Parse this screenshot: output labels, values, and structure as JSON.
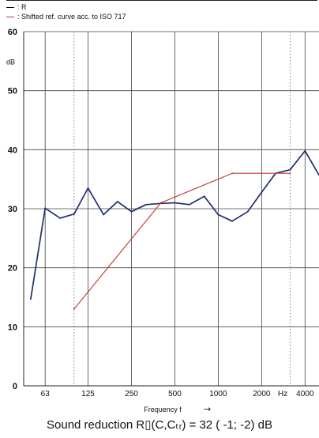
{
  "legend": [
    {
      "label": ": R",
      "color": "#1f2f6b"
    },
    {
      "label": ": Shifted ref. curve acc. to  ISO 717",
      "color": "#c0392b"
    }
  ],
  "footer": {
    "text": "Sound reduction R▯(C,Cₜᵣ) =   32 ( -1; -2) dB"
  },
  "chart_data": {
    "type": "line",
    "title": "",
    "xlabel": "Frequency f",
    "xlabel_arrow": "→",
    "ylabel": "dB",
    "xscale": "log",
    "ylim": [
      0,
      60
    ],
    "yticks": [
      0,
      10,
      20,
      30,
      40,
      50,
      60
    ],
    "xticks": [
      {
        "f": 63,
        "label": "63"
      },
      {
        "f": 125,
        "label": "125"
      },
      {
        "f": 250,
        "label": "250"
      },
      {
        "f": 500,
        "label": "500"
      },
      {
        "f": 1000,
        "label": "1000"
      },
      {
        "f": 2000,
        "label": "2000"
      },
      {
        "f": 2800,
        "label": "Hz"
      },
      {
        "f": 4000,
        "label": "4000"
      }
    ],
    "dotted_verticals_f": [
      100,
      3150
    ],
    "grid": true,
    "series": [
      {
        "name": "R",
        "color": "#1f2f6b",
        "x": [
          50,
          63,
          80,
          100,
          125,
          160,
          200,
          250,
          315,
          400,
          500,
          630,
          800,
          1000,
          1250,
          1600,
          2000,
          2500,
          3150,
          4000,
          5000
        ],
        "y": [
          14.7,
          30.1,
          28.4,
          29.1,
          33.5,
          29.0,
          31.2,
          29.5,
          30.7,
          30.9,
          31.0,
          30.7,
          32.1,
          29.0,
          27.9,
          29.5,
          32.8,
          36.0,
          36.6,
          39.8,
          35.7
        ]
      },
      {
        "name": "Shifted ref. curve acc. to  ISO 717",
        "color": "#c0392b",
        "x": [
          100,
          400,
          1250,
          3150
        ],
        "y": [
          13,
          31,
          36,
          36
        ]
      }
    ]
  }
}
